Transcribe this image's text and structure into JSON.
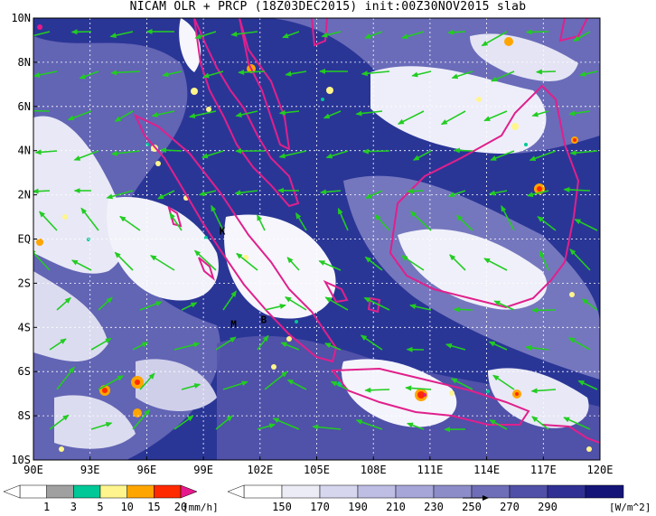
{
  "title": "NICAM OLR + PRCP (18Z03DEC2015) init:00Z30NOV2015 slab",
  "lat_labels": [
    "10N",
    "8N",
    "6N",
    "4N",
    "2N",
    "EQ",
    "2S",
    "4S",
    "6S",
    "8S",
    "10S"
  ],
  "lon_labels": [
    "90E",
    "93E",
    "96E",
    "99E",
    "102E",
    "105E",
    "108E",
    "111E",
    "114E",
    "117E",
    "120E"
  ],
  "markers": [
    {
      "label": "K",
      "lon": 100.0,
      "lat": 0.2
    },
    {
      "label": "M",
      "lon": 100.6,
      "lat": -4.0
    },
    {
      "label": "B",
      "lon": 102.2,
      "lat": -3.8
    }
  ],
  "precip_colorbar": {
    "tick_labels": [
      "1",
      "3",
      "5",
      "10",
      "15",
      "20"
    ],
    "unit": "[mm/h]",
    "colors": [
      "#ffffff",
      "#a0a0a0",
      "#00c896",
      "#fff58c",
      "#ffa500",
      "#ff2a00",
      "#e6198c"
    ]
  },
  "olr_colorbar": {
    "tick_labels": [
      "150",
      "170",
      "190",
      "210",
      "230",
      "250",
      "270",
      "290"
    ],
    "unit": "[W/m^2]",
    "colors": [
      "#ffffff",
      "#ececf6",
      "#d6d6ee",
      "#bebee4",
      "#a6a6d8",
      "#8c8cc8",
      "#6e6eb8",
      "#5050a8",
      "#303094",
      "#141478"
    ]
  },
  "colors": {
    "cloud_dark": "#1c2a8c",
    "cloud_mid": "#6a6ab8",
    "coastline": "#e0208c",
    "wind_arrow": "#22cc22",
    "grid": "#ffffff"
  }
}
